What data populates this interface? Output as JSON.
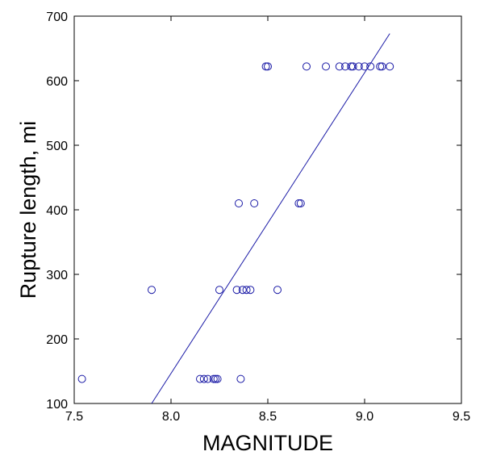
{
  "chart_data": {
    "type": "scatter",
    "title": "",
    "xlabel": "MAGNITUDE",
    "ylabel": "Rupture length, mi",
    "xlim": [
      7.5,
      9.5
    ],
    "ylim": [
      100,
      700
    ],
    "xticks": [
      "7.5",
      "8.0",
      "8.5",
      "9.0",
      "9.5"
    ],
    "yticks": [
      "100",
      "200",
      "300",
      "400",
      "500",
      "600",
      "700"
    ],
    "grid": false,
    "legend": "none",
    "colors": {
      "points": "#1a1aa6",
      "fit_line": "#1a1aa6",
      "axes": "#000000"
    },
    "series": [
      {
        "marker": "open-circle",
        "x": [
          7.54,
          7.9,
          8.15,
          8.17,
          8.19,
          8.22,
          8.23,
          8.24,
          8.25,
          8.34,
          8.35,
          8.36,
          8.37,
          8.39,
          8.41,
          8.43,
          8.49,
          8.5,
          8.55,
          8.66,
          8.67,
          8.7,
          8.8,
          8.87,
          8.9,
          8.93,
          8.94,
          8.97,
          9.0,
          9.03,
          9.08,
          9.09,
          9.13
        ],
        "y": [
          138,
          276,
          138,
          138,
          138,
          138,
          138,
          138,
          276,
          276,
          410,
          138,
          276,
          276,
          276,
          410,
          622,
          622,
          276,
          410,
          410,
          622,
          622,
          622,
          622,
          622,
          622,
          622,
          622,
          622,
          622,
          622,
          622
        ]
      }
    ],
    "fit_line": {
      "x": [
        7.9,
        9.13
      ],
      "y": [
        100,
        673
      ]
    }
  }
}
